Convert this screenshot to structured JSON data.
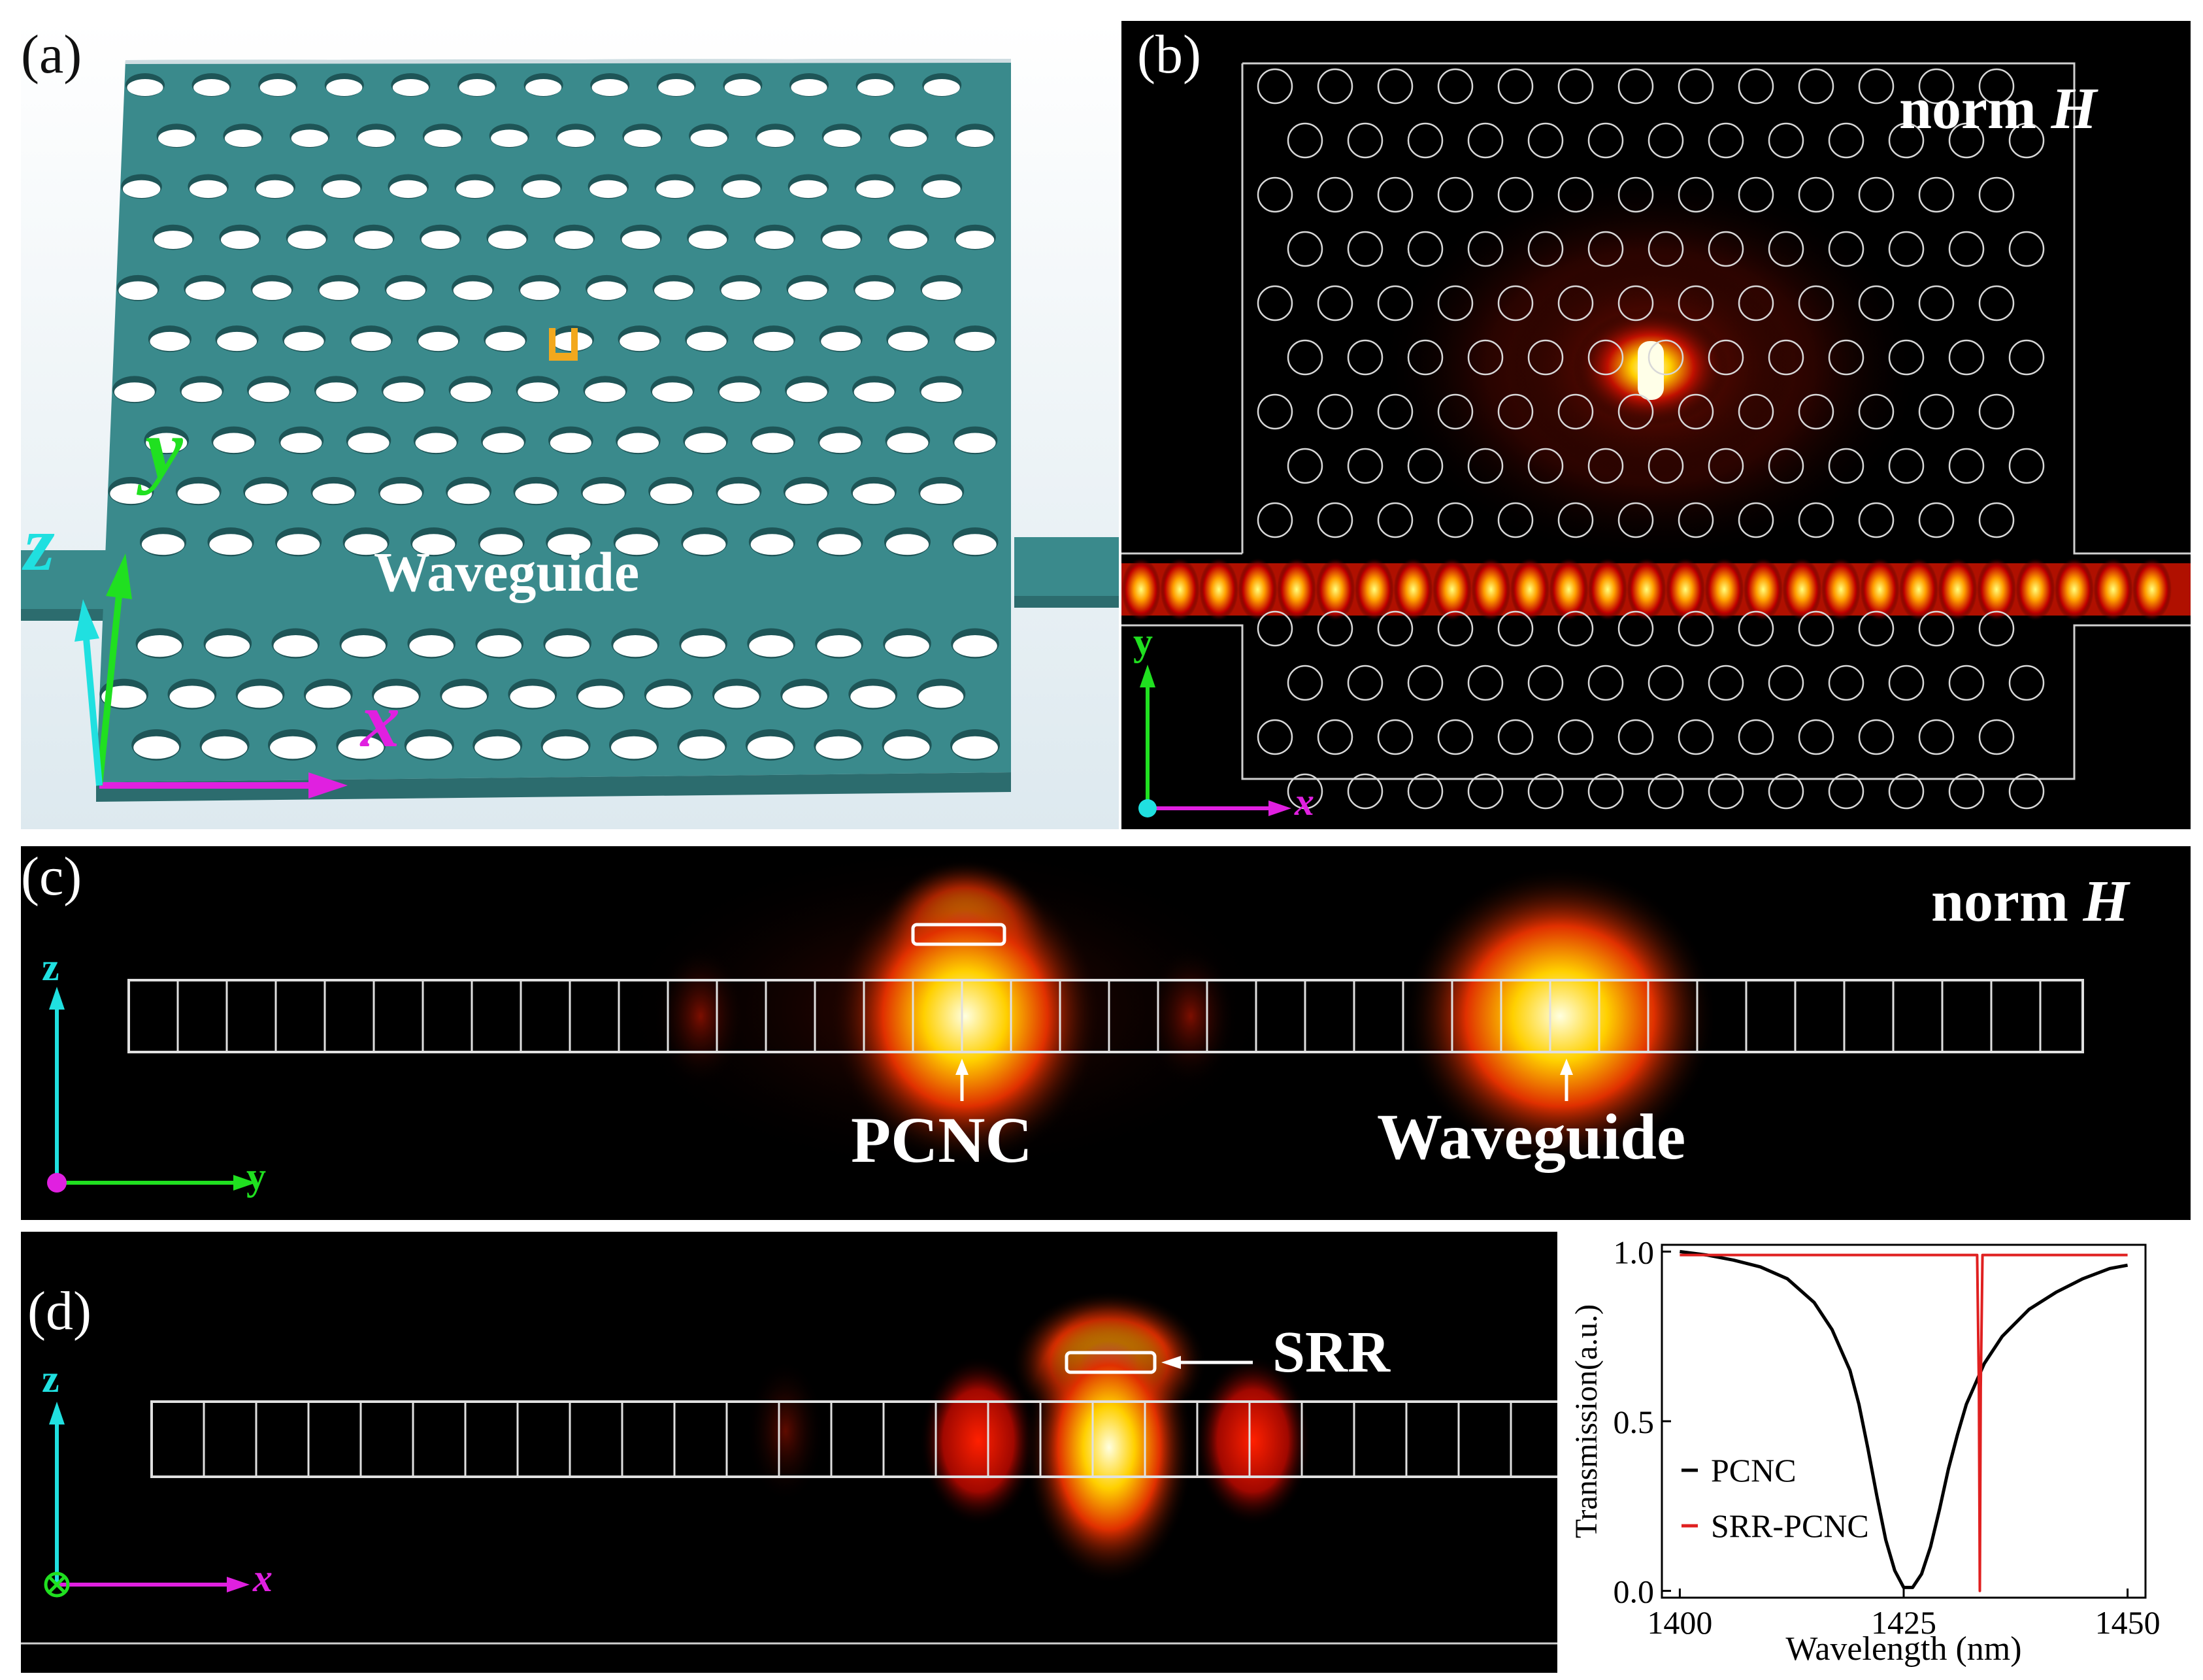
{
  "panels": {
    "a": {
      "label": "(a)",
      "waveguide_label": "Waveguide",
      "axes": {
        "x": "x",
        "y": "y",
        "z": "z"
      }
    },
    "b": {
      "label": "(b)",
      "field_label": "norm ",
      "field_symbol": "H",
      "axes": {
        "x": "x",
        "y": "y"
      }
    },
    "c": {
      "label": "(c)",
      "field_label": "norm ",
      "field_symbol": "H",
      "annotations": {
        "pcnc": "PCNC",
        "waveguide": "Waveguide"
      },
      "axes": {
        "z": "z",
        "y": "y"
      }
    },
    "d": {
      "label": "(d)",
      "annotation_srr": "SRR",
      "axes": {
        "z": "z",
        "x": "x"
      }
    }
  },
  "colors": {
    "slab": "#3a8a8c",
    "hole": "#ffffff",
    "axis_x": "#e020e0",
    "axis_y": "#20e020",
    "axis_z": "#20e0e0",
    "srr": "#f2a81d",
    "pcnc_line": "#000000",
    "srr_pcnc_line": "#e02020"
  },
  "chart_data": {
    "type": "line",
    "xlabel": "Wavelength (nm)",
    "ylabel": "Transmission(a.u.)",
    "xlim": [
      1398,
      1452
    ],
    "ylim": [
      -0.02,
      1.02
    ],
    "xticks": [
      "1400",
      "1425",
      "1450"
    ],
    "yticks": [
      "0.0",
      "0.5",
      "1.0"
    ],
    "legend_position": "bottom-left",
    "series": [
      {
        "name": "PCNC",
        "color": "#000000",
        "x": [
          1400,
          1403,
          1406,
          1409,
          1412,
          1415,
          1417,
          1419,
          1420,
          1421,
          1422,
          1423,
          1424,
          1425,
          1426,
          1427,
          1428,
          1429,
          1430,
          1431,
          1432,
          1434,
          1436,
          1439,
          1442,
          1445,
          1448,
          1450
        ],
        "y": [
          1.0,
          0.99,
          0.975,
          0.955,
          0.92,
          0.85,
          0.77,
          0.65,
          0.55,
          0.42,
          0.28,
          0.15,
          0.06,
          0.01,
          0.01,
          0.05,
          0.13,
          0.24,
          0.36,
          0.46,
          0.55,
          0.67,
          0.75,
          0.83,
          0.88,
          0.92,
          0.95,
          0.96
        ]
      },
      {
        "name": "SRR-PCNC",
        "color": "#e02020",
        "x": [
          1400,
          1433.2,
          1433.4,
          1433.5,
          1433.6,
          1433.8,
          1450
        ],
        "y": [
          0.99,
          0.99,
          0.6,
          0.0,
          0.6,
          0.99,
          0.99
        ]
      }
    ]
  }
}
